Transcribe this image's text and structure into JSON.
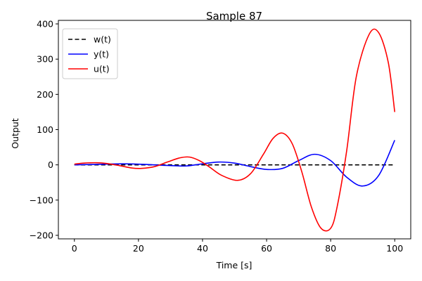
{
  "chart_data": {
    "type": "line",
    "title": "Sample 87",
    "xlabel": "Time [s]",
    "ylabel": "Output",
    "xlim": [
      -5,
      105
    ],
    "ylim": [
      -210,
      410
    ],
    "xticks": [
      0,
      20,
      40,
      60,
      80,
      100
    ],
    "yticks": [
      -200,
      -100,
      0,
      100,
      200,
      300,
      400
    ],
    "grid": false,
    "legend_position": "top-left",
    "series": [
      {
        "name": "w(t)",
        "color": "#000000",
        "dash": "dashed",
        "x": [
          0,
          10,
          20,
          30,
          40,
          50,
          60,
          70,
          80,
          90,
          100
        ],
        "y": [
          0,
          0,
          0,
          0,
          0,
          0,
          0,
          0,
          0,
          0,
          0
        ]
      },
      {
        "name": "y(t)",
        "color": "#0000ff",
        "dash": "solid",
        "x": [
          0,
          5,
          10,
          15,
          20,
          25,
          30,
          35,
          40,
          45,
          50,
          55,
          60,
          65,
          70,
          75,
          80,
          85,
          90,
          95,
          100
        ],
        "y": [
          0,
          1,
          2,
          3,
          2,
          0,
          -2,
          -3,
          3,
          8,
          5,
          -5,
          -13,
          -10,
          12,
          30,
          12,
          -35,
          -60,
          -30,
          70
        ]
      },
      {
        "name": "u(t)",
        "color": "#ff0000",
        "dash": "solid",
        "x": [
          0,
          3,
          7,
          10,
          14,
          18,
          21,
          25,
          29,
          33,
          36,
          39,
          42,
          46,
          51,
          55,
          59,
          62,
          65,
          68,
          71,
          74,
          77,
          80,
          82,
          85,
          88,
          92,
          95,
          98,
          100
        ],
        "y": [
          2,
          5,
          6,
          4,
          -2,
          -9,
          -10,
          -5,
          8,
          20,
          22,
          12,
          -5,
          -30,
          -44,
          -25,
          30,
          75,
          90,
          60,
          -20,
          -120,
          -180,
          -180,
          -120,
          40,
          250,
          370,
          375,
          290,
          150
        ]
      }
    ]
  }
}
